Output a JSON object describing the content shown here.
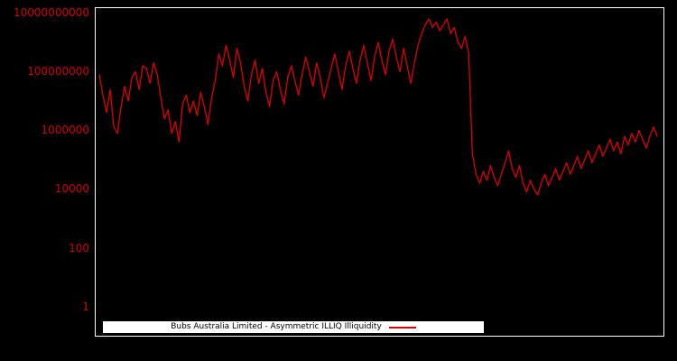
{
  "chart_data": {
    "type": "line",
    "title": "",
    "xlabel": "",
    "ylabel": "",
    "y_scale": "log",
    "ylim": [
      0.1,
      15000000000
    ],
    "grid": false,
    "legend_position": "lower center",
    "background_color": "#000000",
    "frame_color": "#ffffff",
    "line_color": "#e00000",
    "tick_label_color": "#d40000",
    "legend": {
      "label": "Bubs Australia Limited - Asymmetric ILLIQ Illiquidity"
    },
    "yticks": [
      {
        "label": "10000000000",
        "log10": 10
      },
      {
        "label": "100000000",
        "log10": 8
      },
      {
        "label": "1000000",
        "log10": 6
      },
      {
        "label": "10000",
        "log10": 4
      },
      {
        "label": "100",
        "log10": 2
      },
      {
        "label": "1",
        "log10": 0
      }
    ],
    "series": [
      {
        "name": "Bubs Australia Limited - Asymmetric ILLIQ Illiquidity",
        "values": [
          79000000.0,
          16000000.0,
          4000000.0,
          25000000.0,
          1300000.0,
          790000.0,
          6300000.0,
          32000000.0,
          10000000.0,
          63000000.0,
          100000000.0,
          25000000.0,
          160000000.0,
          130000000.0,
          40000000.0,
          200000000.0,
          79000000.0,
          13000000.0,
          2500000.0,
          5000000.0,
          790000.0,
          2000000.0,
          400000.0,
          7900000.0,
          16000000.0,
          4000000.0,
          10000000.0,
          3200000.0,
          20000000.0,
          6300000.0,
          1600000.0,
          13000000.0,
          50000000.0,
          400000000.0,
          160000000.0,
          790000000.0,
          250000000.0,
          63000000.0,
          630000000.0,
          200000000.0,
          32000000.0,
          10000000.0,
          79000000.0,
          250000000.0,
          40000000.0,
          130000000.0,
          20000000.0,
          6300000.0,
          50000000.0,
          100000000.0,
          25000000.0,
          7900000.0,
          63000000.0,
          160000000.0,
          50000000.0,
          16000000.0,
          79000000.0,
          320000000.0,
          100000000.0,
          32000000.0,
          200000000.0,
          63000000.0,
          13000000.0,
          40000000.0,
          130000000.0,
          400000000.0,
          100000000.0,
          25000000.0,
          160000000.0,
          500000000.0,
          130000000.0,
          40000000.0,
          250000000.0,
          790000000.0,
          200000000.0,
          50000000.0,
          320000000.0,
          1000000000.0,
          250000000.0,
          79000000.0,
          500000000.0,
          1300000000.0,
          320000000.0,
          100000000.0,
          630000000.0,
          160000000.0,
          40000000.0,
          200000000.0,
          790000000.0,
          2000000000.0,
          4000000000.0,
          6300000000.0,
          3200000000.0,
          5000000000.0,
          2500000000.0,
          4000000000.0,
          6300000000.0,
          2000000000.0,
          3200000000.0,
          1000000000.0,
          630000000.0,
          1600000000.0,
          400000000.0,
          160000.0,
          32000.0,
          16000.0,
          40000.0,
          20000.0,
          63000.0,
          25000.0,
          13000.0,
          32000.0,
          79000.0,
          200000.0,
          50000.0,
          25000.0,
          63000.0,
          16000.0,
          7900.0,
          20000.0,
          10000.0,
          6300.0,
          16000.0,
          32000.0,
          13000.0,
          25000.0,
          50000.0,
          20000.0,
          40000.0,
          79000.0,
          32000.0,
          63000.0,
          130000.0,
          50000.0,
          100000.0,
          200000.0,
          79000.0,
          160000.0,
          320000.0,
          130000.0,
          250000.0,
          500000.0,
          200000.0,
          400000.0,
          160000.0,
          630000.0,
          320000.0,
          790000.0,
          400000.0,
          1000000.0,
          500000.0,
          250000.0,
          630000.0,
          1300000.0,
          630000.0
        ]
      }
    ]
  }
}
